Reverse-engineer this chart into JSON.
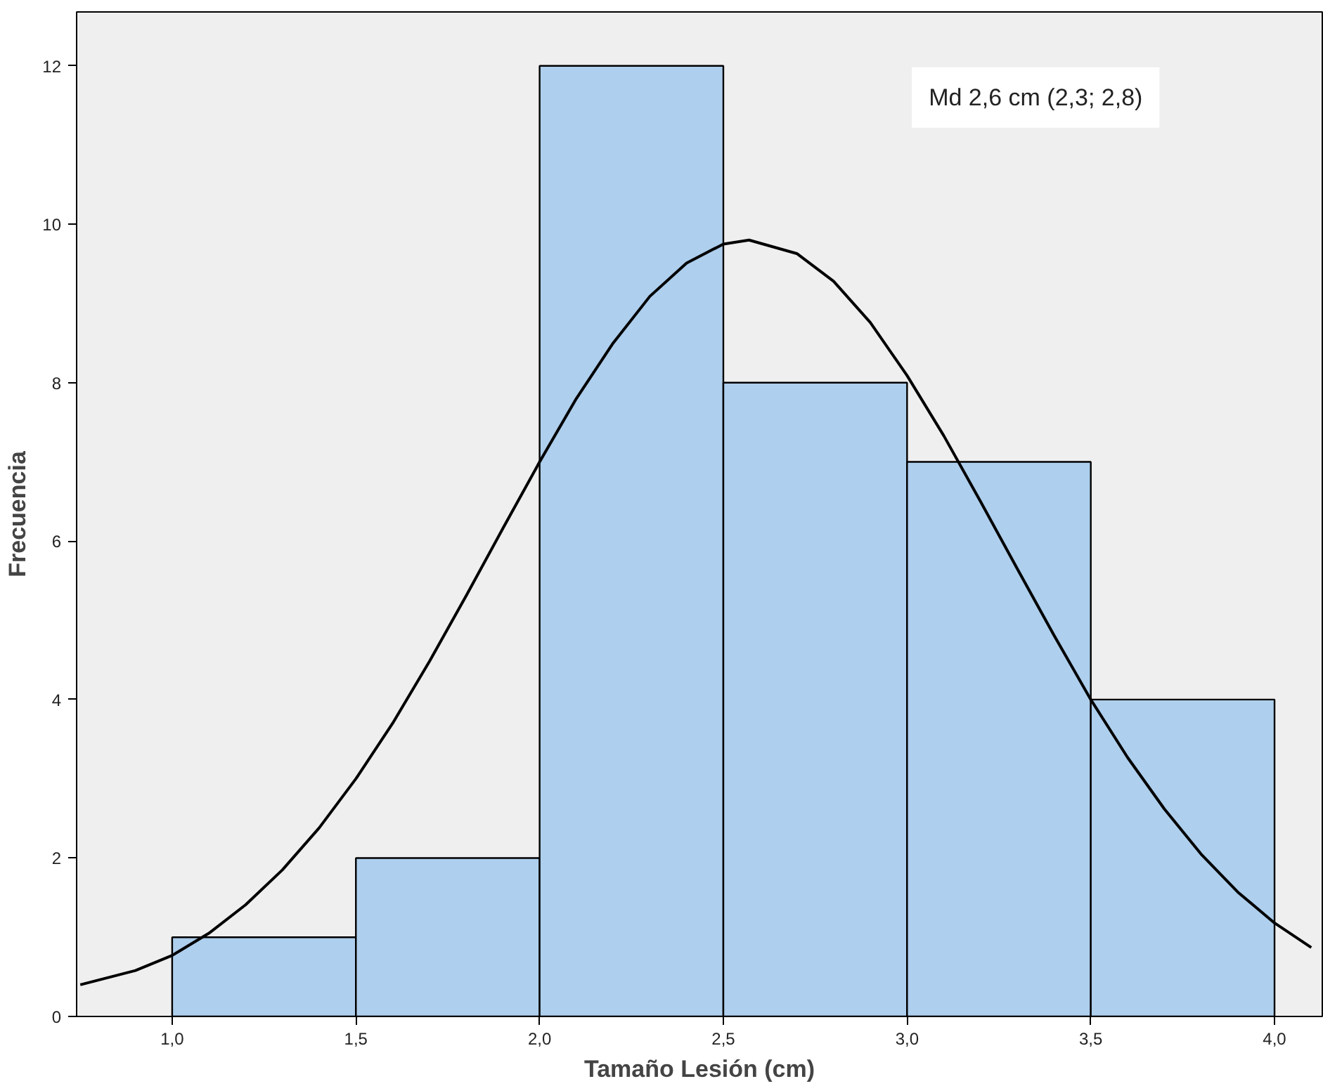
{
  "chart_data": {
    "type": "histogram",
    "xlabel": "Tamaño Lesión (cm)",
    "ylabel": "Frecuencia",
    "annotations": [
      "Md 2,6 cm (2,3; 2,8)"
    ],
    "bins": [
      1.0,
      1.5,
      2.0,
      2.5,
      3.0,
      3.5,
      4.0
    ],
    "values": [
      1,
      2,
      12,
      8,
      7,
      4
    ],
    "color": "#aecfed",
    "series": [
      {
        "type": "line",
        "color": "#000000",
        "x": [
          0.75,
          0.9,
          1.0,
          1.1,
          1.2,
          1.3,
          1.4,
          1.5,
          1.6,
          1.7,
          1.8,
          1.9,
          2.0,
          2.1,
          2.2,
          2.3,
          2.4,
          2.5,
          2.57,
          2.7,
          2.8,
          2.9,
          3.0,
          3.1,
          3.2,
          3.3,
          3.4,
          3.5,
          3.6,
          3.7,
          3.8,
          3.9,
          4.0,
          4.1
        ],
        "values": [
          0.4,
          0.58,
          0.77,
          1.05,
          1.41,
          1.85,
          2.38,
          3.0,
          3.7,
          4.48,
          5.31,
          6.16,
          7.0,
          7.8,
          8.5,
          9.09,
          9.51,
          9.75,
          9.8,
          9.63,
          9.28,
          8.76,
          8.09,
          7.33,
          6.5,
          5.65,
          4.81,
          4.0,
          3.27,
          2.62,
          2.05,
          1.57,
          1.18,
          0.87
        ]
      }
    ],
    "xlim": [
      0.74,
      4.13
    ],
    "ylim": [
      0,
      12.68
    ],
    "xticks": [
      {
        "value": 1.0,
        "label": "1,0"
      },
      {
        "value": 1.5,
        "label": "1,5"
      },
      {
        "value": 2.0,
        "label": "2,0"
      },
      {
        "value": 2.5,
        "label": "2,5"
      },
      {
        "value": 3.0,
        "label": "3,0"
      },
      {
        "value": 3.5,
        "label": "3,5"
      },
      {
        "value": 4.0,
        "label": "4,0"
      }
    ],
    "yticks": [
      0,
      2,
      4,
      6,
      8,
      10,
      12
    ],
    "grid": false
  }
}
